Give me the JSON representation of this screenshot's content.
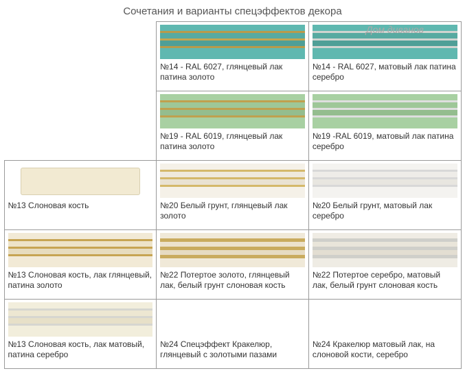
{
  "title": "Сочетания и варианты спецэффектов декора",
  "watermark": "Дом диванов",
  "cells": {
    "c1": {
      "caption": "№14 - RAL 6027, глянцевый лак патина золото"
    },
    "c2": {
      "caption": "№14 - RAL 6027,  матовый  лак патина  серебро"
    },
    "c3": {
      "caption": "№19 - RAL 6019, глянцевый лак патина золото"
    },
    "c4": {
      "caption": "№19 -RAL 6019, матовый лак патина серебро"
    },
    "c5": {
      "caption": "№13 Слоновая кость"
    },
    "c6": {
      "caption": "№20 Белый грунт, глянцевый лак золото"
    },
    "c7": {
      "caption": "№20 Белый грунт, матовый лак серебро"
    },
    "c8": {
      "caption": "№13 Слоновая кость, лак глянцевый, патина золото"
    },
    "c9": {
      "caption": "№22 Потертое золото, глянцевый лак, белый грунт слоновая кость"
    },
    "c10": {
      "caption": "№22 Потертое серебро, матовый лак, белый грунт слоновая кость"
    },
    "c11": {
      "caption": "№13 Слоновая кость, лак матовый, патина серебро"
    },
    "c12": {
      "caption": "№24 Спецэффект Кракелюр, глянцевый с золотыми пазами"
    },
    "c13": {
      "caption": "№24 Кракелюр матовый лак, на слоновой кости, серебро"
    }
  }
}
